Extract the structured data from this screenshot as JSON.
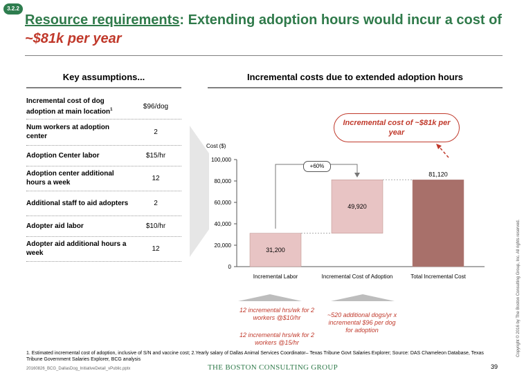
{
  "badge": "3.2.2",
  "title": {
    "part1": "Resource requirements",
    "part2": ": Extending adoption hours would incur a cost of ",
    "highlight": "~$81k per year"
  },
  "left_header": "Key assumptions...",
  "right_header": "Incremental costs due to extended adoption hours",
  "assumptions": [
    {
      "label": "Incremental cost of dog adoption at main location",
      "sup": "1",
      "value": "$96/dog"
    },
    {
      "label": "Num workers at adoption center",
      "sup": "",
      "value": "2"
    },
    {
      "label": "Adoption Center labor",
      "sup": "",
      "value": "$15/hr"
    },
    {
      "label": "Adoption center additional hours a week",
      "sup": "",
      "value": "12"
    },
    {
      "label": "Additional staff to aid adopters",
      "sup": "",
      "value": "2"
    },
    {
      "label": "Adopter aid labor",
      "sup": "",
      "value": "$10/hr"
    },
    {
      "label": "Adopter aid additional hours a week",
      "sup": "",
      "value": "12"
    }
  ],
  "chart_data": {
    "type": "bar",
    "subtype": "waterfall",
    "ylabel": "Cost ($)",
    "ylim": [
      0,
      100000
    ],
    "yticks": [
      "0",
      "20,000",
      "40,000",
      "60,000",
      "80,000",
      "100,000"
    ],
    "categories": [
      "Incremental Labor",
      "Incremental Cost of Adoption",
      "Total Incremental Cost"
    ],
    "bars": [
      {
        "base": 0,
        "value": 31200,
        "label": "31,200",
        "color": "#e8c4c4"
      },
      {
        "base": 31200,
        "value": 49920,
        "label": "49,920",
        "color": "#e8c4c4"
      },
      {
        "base": 0,
        "value": 81120,
        "label": "81,120",
        "color": "#a8706a"
      }
    ],
    "growth_label": "+60%"
  },
  "callout": "Incremental cost of ~$81k per year",
  "annotations": {
    "labor_1": "12 incremental hrs/wk for 2 workers @$10/hr",
    "labor_2": "12 incremental hrs/wk for 2 workers @15/hr",
    "adoption": "~520 additional dogs/yr x incremental $96 per dog for adoption"
  },
  "footnote": "1. Estimated incremental cost of adoption, inclusive of S/N and vaccine cost; 2.Yearly salary of Dallas Animal Services Coordinator– Texas Tribune Govt Salaries Explorer; Source: DAS Chameleon Database, Texas Tribune Government Salaries Explorer, BCG analysis",
  "filename": "20160826_BCG_DallasDog_InitiativeDetail_vPublic.pptx",
  "logo": "THE BOSTON CONSULTING GROUP",
  "page_number": "39",
  "copyright": "Copyright © 2016 by The Boston Consulting Group, Inc. All rights reserved."
}
